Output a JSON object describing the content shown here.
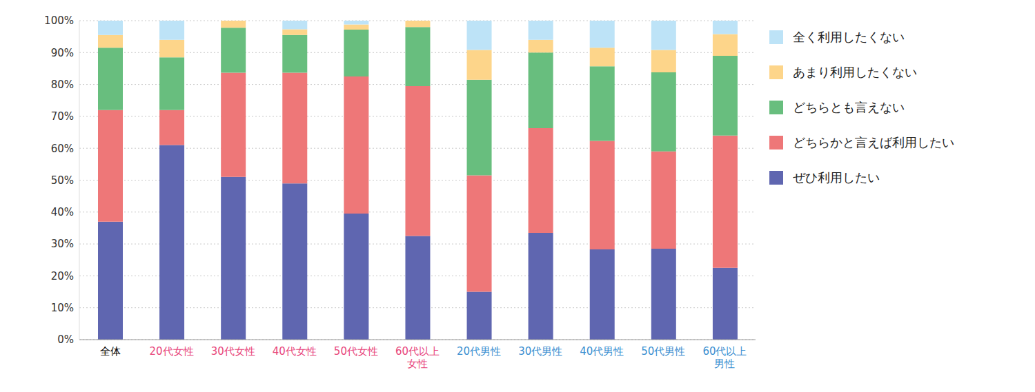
{
  "chart_data": {
    "type": "bar",
    "stacked": true,
    "grid": true,
    "legend": "right",
    "categories": [
      "全体",
      "20代女性",
      "30代女性",
      "40代女性",
      "50代女性",
      "60代以上\n女性",
      "20代男性",
      "30代男性",
      "40代男性",
      "50代男性",
      "60代以上\n男性"
    ],
    "series": [
      {
        "name": "ぜひ利用したい",
        "color": "#5f66b0",
        "values": [
          37,
          61,
          51,
          49,
          39.5,
          32.5,
          15,
          33.5,
          28.3,
          28.5,
          22.5
        ]
      },
      {
        "name": "どちらかと言えば利用したい",
        "color": "#ee7778",
        "values": [
          35,
          11,
          32.7,
          34.7,
          43,
          47,
          36.5,
          32.8,
          34,
          30.5,
          41.5
        ]
      },
      {
        "name": "どちらとも言えない",
        "color": "#68be7e",
        "values": [
          19.5,
          16.5,
          14.1,
          11.8,
          14.7,
          18.5,
          30,
          23.7,
          23.4,
          24.8,
          25
        ]
      },
      {
        "name": "あまり利用したくない",
        "color": "#fdd58a",
        "values": [
          4,
          5.5,
          2.2,
          1.8,
          1.6,
          2,
          9.3,
          4,
          5.8,
          7,
          6.8
        ]
      },
      {
        "name": "全く利用したくない",
        "color": "#bde3f7",
        "values": [
          4.5,
          6,
          0,
          2.7,
          1.2,
          0,
          9.2,
          6,
          8.5,
          9.2,
          4.2
        ]
      }
    ],
    "ylim": [
      0,
      100
    ],
    "yticks": [
      {
        "value": 0,
        "label": "0%"
      },
      {
        "value": 10,
        "label": "10%"
      },
      {
        "value": 20,
        "label": "20%"
      },
      {
        "value": 30,
        "label": "30%"
      },
      {
        "value": 40,
        "label": "40%"
      },
      {
        "value": 50,
        "label": "50%"
      },
      {
        "value": 60,
        "label": "60%"
      },
      {
        "value": 70,
        "label": "70%"
      },
      {
        "value": 80,
        "label": "80%"
      },
      {
        "value": 90,
        "label": "90%"
      },
      {
        "value": 100,
        "label": "100%"
      }
    ]
  }
}
